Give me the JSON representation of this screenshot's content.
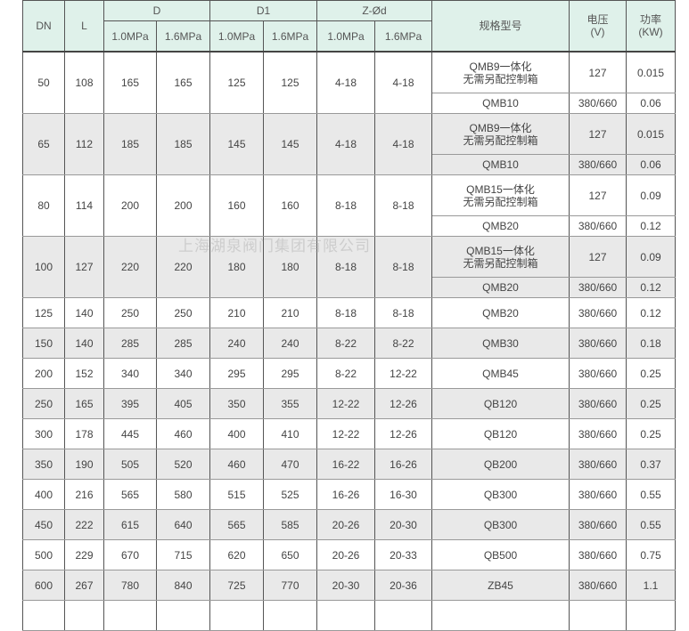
{
  "headers": {
    "dn": "DN",
    "l": "L",
    "d": "D",
    "d1": "D1",
    "zd": "Z-Ød",
    "model": "规格型号",
    "voltage": "电压\n(V)",
    "voltage_l1": "电压",
    "voltage_l2": "(V)",
    "power_l1": "功率",
    "power_l2": "(KW)",
    "p10": "1.0MPa",
    "p16": "1.6MPa"
  },
  "grouped_rows": [
    {
      "dn": "50",
      "l": "108",
      "d10": "165",
      "d16": "165",
      "d110": "125",
      "d116": "125",
      "z10": "4-18",
      "z16": "4-18",
      "model1a": "QMB9一体化",
      "model1b": "无需另配控制箱",
      "v1": "127",
      "p1": "0.015",
      "model2": "QMB10",
      "v2": "380/660",
      "p2": "0.06"
    },
    {
      "dn": "65",
      "l": "112",
      "d10": "185",
      "d16": "185",
      "d110": "145",
      "d116": "145",
      "z10": "4-18",
      "z16": "4-18",
      "model1a": "QMB9一体化",
      "model1b": "无需另配控制箱",
      "v1": "127",
      "p1": "0.015",
      "model2": "QMB10",
      "v2": "380/660",
      "p2": "0.06"
    },
    {
      "dn": "80",
      "l": "114",
      "d10": "200",
      "d16": "200",
      "d110": "160",
      "d116": "160",
      "z10": "8-18",
      "z16": "8-18",
      "model1a": "QMB15一体化",
      "model1b": "无需另配控制箱",
      "v1": "127",
      "p1": "0.09",
      "model2": "QMB20",
      "v2": "380/660",
      "p2": "0.12"
    },
    {
      "dn": "100",
      "l": "127",
      "d10": "220",
      "d16": "220",
      "d110": "180",
      "d116": "180",
      "z10": "8-18",
      "z16": "8-18",
      "model1a": "QMB15一体化",
      "model1b": "无需另配控制箱",
      "v1": "127",
      "p1": "0.09",
      "model2": "QMB20",
      "v2": "380/660",
      "p2": "0.12"
    }
  ],
  "rows": [
    [
      "125",
      "140",
      "250",
      "250",
      "210",
      "210",
      "8-18",
      "8-18",
      "QMB20",
      "380/660",
      "0.12"
    ],
    [
      "150",
      "140",
      "285",
      "285",
      "240",
      "240",
      "8-22",
      "8-22",
      "QMB30",
      "380/660",
      "0.18"
    ],
    [
      "200",
      "152",
      "340",
      "340",
      "295",
      "295",
      "8-22",
      "12-22",
      "QMB45",
      "380/660",
      "0.25"
    ],
    [
      "250",
      "165",
      "395",
      "405",
      "350",
      "355",
      "12-22",
      "12-26",
      "QB120",
      "380/660",
      "0.25"
    ],
    [
      "300",
      "178",
      "445",
      "460",
      "400",
      "410",
      "12-22",
      "12-26",
      "QB120",
      "380/660",
      "0.25"
    ],
    [
      "350",
      "190",
      "505",
      "520",
      "460",
      "470",
      "16-22",
      "16-26",
      "QB200",
      "380/660",
      "0.37"
    ],
    [
      "400",
      "216",
      "565",
      "580",
      "515",
      "525",
      "16-26",
      "16-30",
      "QB300",
      "380/660",
      "0.55"
    ],
    [
      "450",
      "222",
      "615",
      "640",
      "565",
      "585",
      "20-26",
      "20-30",
      "QB300",
      "380/660",
      "0.55"
    ],
    [
      "500",
      "229",
      "670",
      "715",
      "620",
      "650",
      "20-26",
      "20-33",
      "QB500",
      "380/660",
      "0.75"
    ],
    [
      "600",
      "267",
      "780",
      "840",
      "725",
      "770",
      "20-30",
      "20-36",
      "ZB45",
      "380/660",
      "1.1"
    ]
  ],
  "watermark": "上海湖泉阀门集团有限公司",
  "colors": {
    "header_bg": "#dff1ea",
    "stripe_bg": "#e9e9e9"
  }
}
